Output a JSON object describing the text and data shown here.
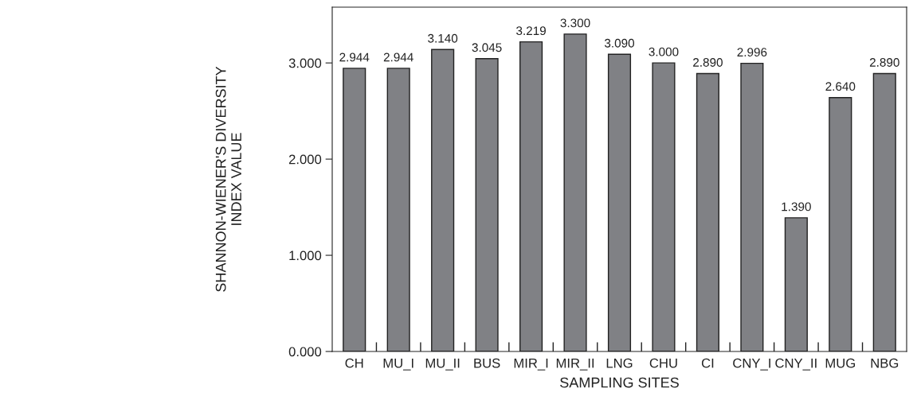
{
  "chart_data": {
    "type": "bar",
    "xlabel": "SAMPLING SITES",
    "ylabel": "SHANNON-WIENER'S DIVERSITY\nINDEX VALUE",
    "categories": [
      "CH",
      "MU_I",
      "MU_II",
      "BUS",
      "MIR_I",
      "MIR_II",
      "LNG",
      "CHU",
      "CI",
      "CNY_I",
      "CNY_II",
      "MUG",
      "NBG"
    ],
    "values": [
      2.944,
      2.944,
      3.14,
      3.045,
      3.219,
      3.3,
      3.09,
      3.0,
      2.89,
      2.996,
      1.39,
      2.64,
      2.89
    ],
    "value_labels": [
      "2.944",
      "2.944",
      "3.140",
      "3.045",
      "3.219",
      "3.300",
      "3.090",
      "3.000",
      "2.890",
      "2.996",
      "1.390",
      "2.640",
      "2.890"
    ],
    "color": "#808185",
    "ylim": [
      0,
      3.58
    ],
    "yticks": [
      {
        "value": 0,
        "label": "0.000"
      },
      {
        "value": 1,
        "label": "1.000"
      },
      {
        "value": 2,
        "label": "2.000"
      },
      {
        "value": 3,
        "label": "3.000"
      }
    ],
    "grid": false,
    "legend": false
  }
}
